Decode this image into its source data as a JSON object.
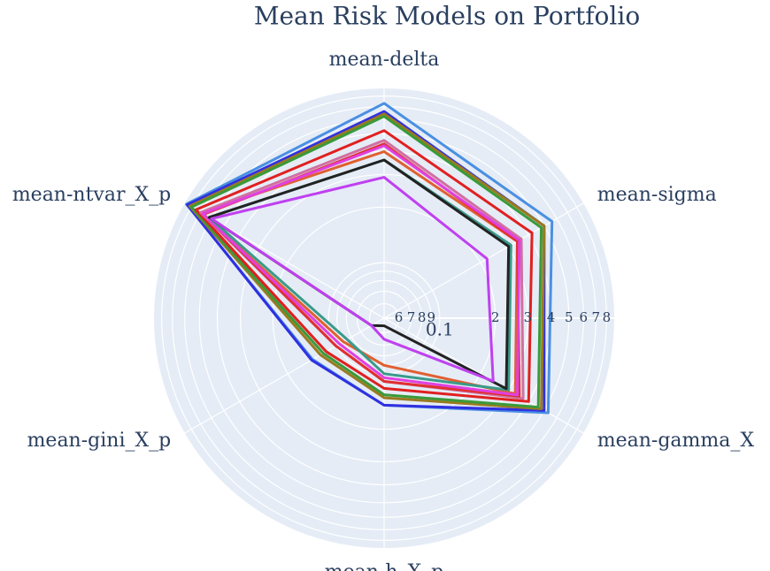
{
  "chart_data": {
    "type": "radar",
    "title": "Mean Risk Models on Portfolio",
    "categories": [
      "mean-delta",
      "mean-sigma",
      "mean-gamma_X",
      "mean-h_X_p",
      "mean-gini_X_p",
      "mean-ntvar_X_p"
    ],
    "rlim": [
      0.05,
      0.88
    ],
    "log_scale": true,
    "grid": true,
    "rticks": [
      {
        "value": 0.06,
        "label": "6"
      },
      {
        "value": 0.07,
        "label": "7"
      },
      {
        "value": 0.08,
        "label": "8"
      },
      {
        "value": 0.09,
        "label": "9"
      },
      0.1,
      {
        "value": 0.2,
        "label": "2"
      },
      {
        "value": 0.3,
        "label": "3"
      },
      {
        "value": 0.4,
        "label": "4"
      },
      {
        "value": 0.5,
        "label": "5"
      },
      {
        "value": 0.6,
        "label": "6"
      },
      {
        "value": 0.7,
        "label": "7"
      },
      {
        "value": 0.8,
        "label": "8"
      }
    ],
    "series": [
      {
        "color": "#4a90e2",
        "values": [
          0.73,
          0.56,
          0.53,
          0.148,
          0.14,
          0.86
        ]
      },
      {
        "color": "#3030e0",
        "values": [
          0.66,
          0.5,
          0.5,
          0.148,
          0.142,
          0.85
        ]
      },
      {
        "color": "#9a7a20",
        "values": [
          0.64,
          0.5,
          0.48,
          0.135,
          0.125,
          0.82
        ]
      },
      {
        "color": "#3a9a3a",
        "values": [
          0.62,
          0.48,
          0.46,
          0.13,
          0.12,
          0.8
        ]
      },
      {
        "color": "#e02020",
        "values": [
          0.52,
          0.42,
          0.4,
          0.12,
          0.115,
          0.75
        ]
      },
      {
        "color": "#e06030",
        "values": [
          0.4,
          0.34,
          0.33,
          0.09,
          0.09,
          0.7
        ]
      },
      {
        "color": "#d070a0",
        "values": [
          0.46,
          0.36,
          0.37,
          0.11,
          0.1,
          0.7
        ]
      },
      {
        "color": "#e03030",
        "values": [
          0.44,
          0.34,
          0.35,
          0.11,
          0.1,
          0.67
        ]
      },
      {
        "color": "#e040e0",
        "values": [
          0.43,
          0.35,
          0.34,
          0.105,
          0.095,
          0.68
        ]
      },
      {
        "color": "#3a9a8a",
        "values": [
          0.36,
          0.31,
          0.3,
          0.1,
          0.085,
          0.62
        ]
      },
      {
        "color": "#222222",
        "values": [
          0.36,
          0.3,
          0.29,
          0.055,
          0.06,
          0.62
        ]
      },
      {
        "color": "#c040f0",
        "values": [
          0.29,
          0.22,
          0.24,
          0.065,
          0.06,
          0.6
        ]
      }
    ]
  }
}
